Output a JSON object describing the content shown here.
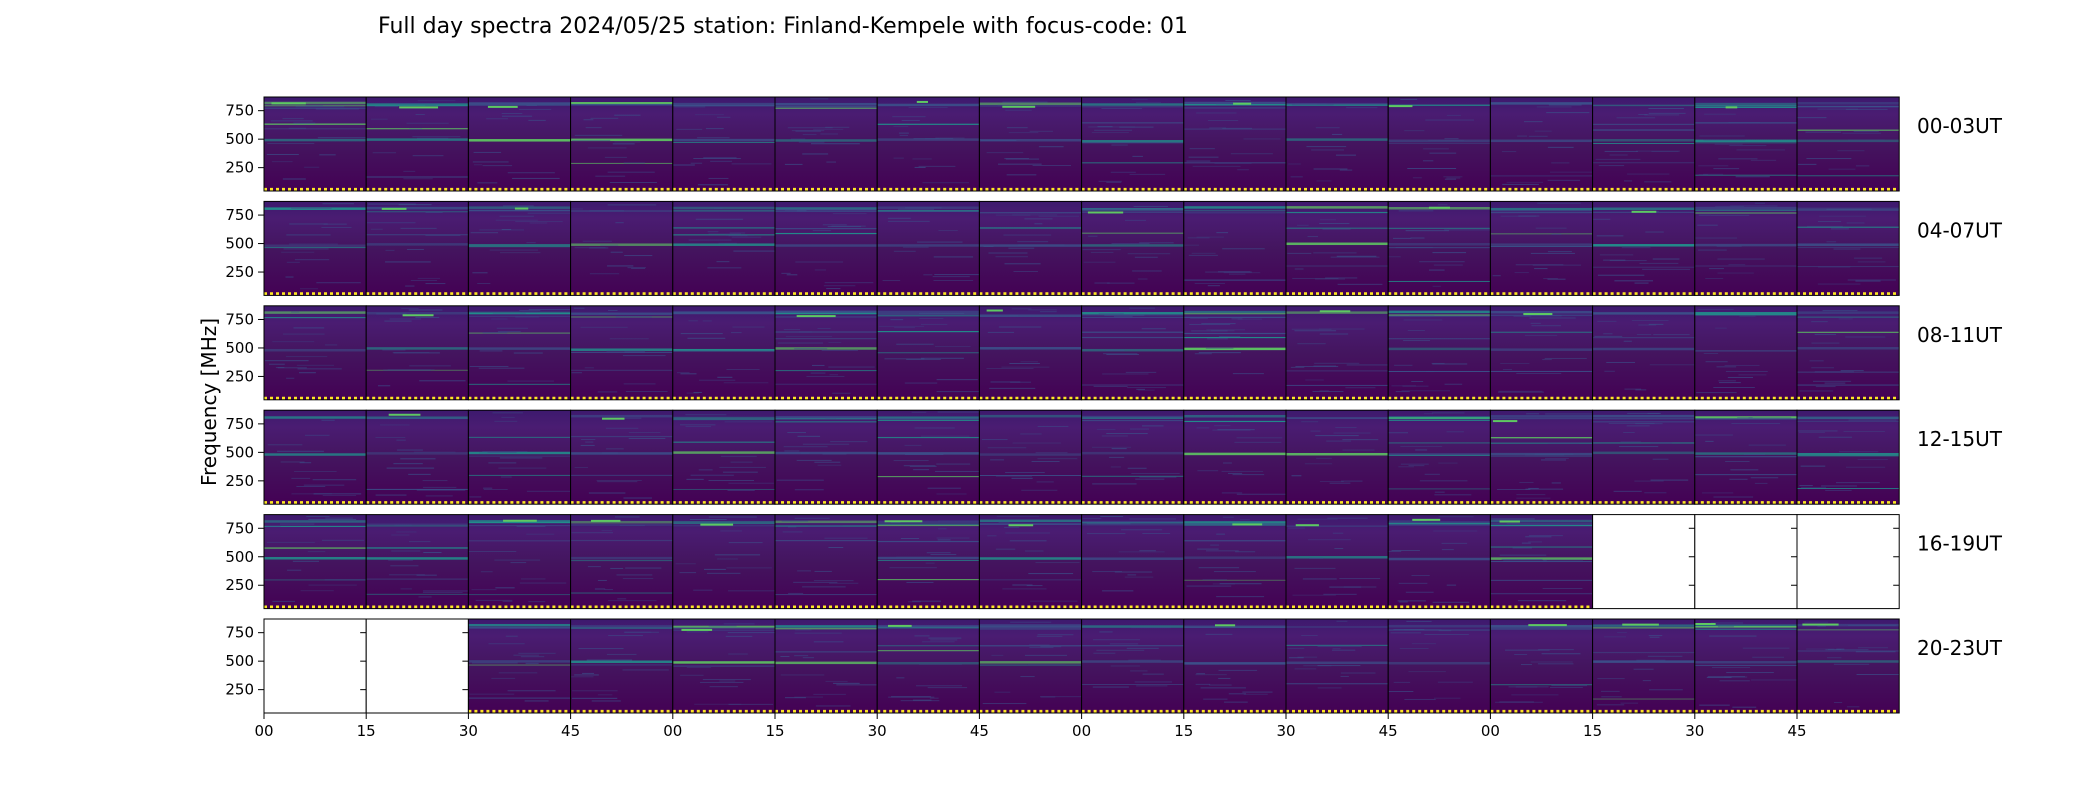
{
  "chart_data": {
    "type": "heatmap",
    "title": "Full day spectra 2024/05/25 station: Finland-Kempele with focus-code: 01",
    "ylabel": "Frequency [MHz]",
    "ylim": [
      45,
      870
    ],
    "y_ticks": [
      "750",
      "500",
      "250"
    ],
    "y_tick_values": [
      750,
      500,
      250
    ],
    "x_ticks": [
      "00",
      "15",
      "30",
      "45",
      "00",
      "15",
      "30",
      "45",
      "00",
      "15",
      "30",
      "45",
      "00",
      "15",
      "30",
      "45"
    ],
    "panel_minutes": 15,
    "colormap": [
      "#440154",
      "#3b528b",
      "#21918c",
      "#5ec962",
      "#fde725"
    ],
    "rows": [
      {
        "label": "00-03UT",
        "panels": [
          1,
          1,
          1,
          1,
          1,
          1,
          1,
          1,
          1,
          1,
          1,
          1,
          1,
          1,
          1,
          1
        ]
      },
      {
        "label": "04-07UT",
        "panels": [
          1,
          1,
          1,
          1,
          1,
          1,
          1,
          1,
          1,
          1,
          1,
          1,
          1,
          1,
          1,
          1
        ]
      },
      {
        "label": "08-11UT",
        "panels": [
          1,
          1,
          1,
          1,
          1,
          1,
          1,
          1,
          1,
          1,
          1,
          1,
          1,
          1,
          1,
          1
        ]
      },
      {
        "label": "12-15UT",
        "panels": [
          1,
          1,
          1,
          1,
          1,
          1,
          1,
          1,
          1,
          1,
          1,
          1,
          1,
          1,
          1,
          1
        ]
      },
      {
        "label": "16-19UT",
        "panels": [
          1,
          1,
          1,
          1,
          1,
          1,
          1,
          1,
          1,
          1,
          1,
          1,
          1,
          0,
          0,
          0
        ]
      },
      {
        "label": "20-23UT",
        "panels": [
          0,
          0,
          1,
          1,
          1,
          1,
          1,
          1,
          1,
          1,
          1,
          1,
          1,
          1,
          1,
          1
        ]
      }
    ],
    "grid": false,
    "legend": "none"
  }
}
